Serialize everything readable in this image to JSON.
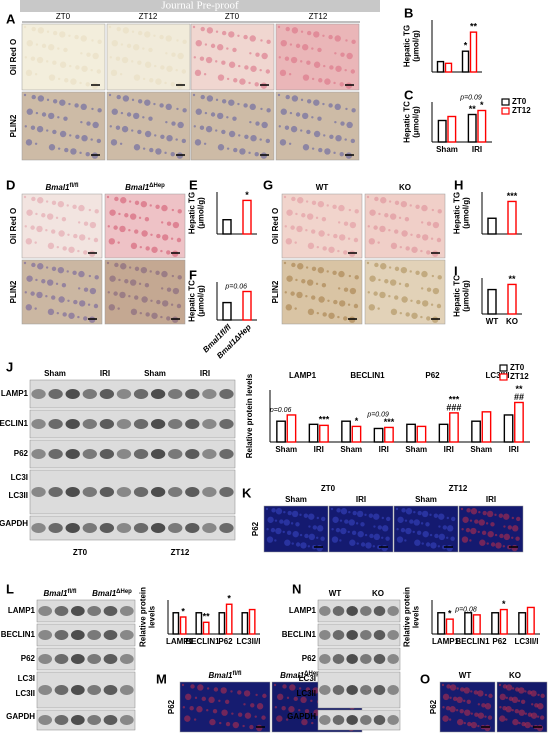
{
  "header": {
    "banner": "Journal Pre-proof"
  },
  "panels": {
    "A": {
      "letter": "A",
      "cols": [
        "ZT0",
        "ZT12",
        "ZT0",
        "ZT12"
      ],
      "rows": [
        "Oil Red O",
        "PLIN2"
      ]
    },
    "D": {
      "letter": "D",
      "cols": [
        {
          "gene": "Bmal1",
          "sup": "fl/fl"
        },
        {
          "gene": "Bmal1",
          "sup": "ΔHep"
        }
      ],
      "rows": [
        "Oil Red O",
        "PLIN2"
      ]
    },
    "G": {
      "letter": "G",
      "cols": [
        "WT",
        "KO"
      ],
      "rows": [
        "Oil Red O",
        "PLIN2"
      ]
    },
    "J": {
      "letter": "J",
      "groups": [
        "Sham",
        "IRI",
        "Sham",
        "IRI"
      ],
      "times": [
        "ZT0",
        "ZT12"
      ],
      "rows": [
        "LAMP1",
        "BECLIN1",
        "P62",
        "LC3I",
        "LC3II",
        "GAPDH"
      ]
    },
    "K": {
      "letter": "K",
      "times": [
        "ZT0",
        "ZT12"
      ],
      "groups": [
        "Sham",
        "IRI",
        "Sham",
        "IRI"
      ],
      "rows": [
        "P62"
      ]
    },
    "L": {
      "letter": "L",
      "cols": [
        {
          "gene": "Bmal1",
          "sup": "fl/fl"
        },
        {
          "gene": "Bmal1",
          "sup": "ΔHep"
        }
      ],
      "rows": [
        "LAMP1",
        "BECLIN1",
        "P62",
        "LC3I",
        "LC3II",
        "GAPDH"
      ]
    },
    "M": {
      "letter": "M",
      "cols": [
        {
          "gene": "Bmal1",
          "sup": "fl/fl"
        },
        {
          "gene": "Bmal1",
          "sup": "ΔHep"
        }
      ],
      "rows": [
        "P62"
      ]
    },
    "N": {
      "letter": "N",
      "cols": [
        "WT",
        "KO"
      ],
      "rows": [
        "LAMP1",
        "BECLIN1",
        "P62",
        "LC3I",
        "LC3II",
        "GAPDH"
      ]
    },
    "O": {
      "letter": "O",
      "cols": [
        "WT",
        "KO"
      ],
      "rows": [
        "P62"
      ]
    }
  },
  "chart_data": [
    {
      "type": "bar",
      "panel": "B",
      "ylabel": [
        "Hepatic TG",
        "(μmol/g)"
      ],
      "categories": [
        null,
        null
      ],
      "series": [
        {
          "color": "#000000",
          "values": [
            6,
            12
          ]
        },
        {
          "color": "#ff0000",
          "values": [
            5,
            23
          ]
        }
      ],
      "ylim": [
        0,
        30
      ],
      "annotations": [
        "*",
        "**"
      ]
    },
    {
      "type": "bar",
      "panel": "C",
      "ylabel": [
        "Hepatic TC",
        "(μmol/g)"
      ],
      "categories": [
        "Sham",
        "IRI"
      ],
      "series": [
        {
          "name": "ZT0",
          "color": "#000000",
          "values": [
            4.3,
            5.5
          ]
        },
        {
          "name": "ZT12",
          "color": "#ff0000",
          "values": [
            5.1,
            6.3
          ]
        }
      ],
      "ylim": [
        0,
        8
      ],
      "annotations": [
        "**",
        "*",
        "p=0.09"
      ]
    },
    {
      "type": "bar",
      "panel": "E",
      "ylabel": [
        "Hepatic TG",
        "(μmol/g)"
      ],
      "categories": [
        null,
        null
      ],
      "values": [
        17,
        40
      ],
      "colors": [
        "#000000",
        "#ff0000"
      ],
      "ylim": [
        0,
        50
      ],
      "annotations": [
        "*"
      ]
    },
    {
      "type": "bar",
      "panel": "F",
      "ylabel": [
        "Hepatic TC",
        "(μmol/g)"
      ],
      "categories": [
        "Bmal1fl/fl",
        "Bmal1ΔHep"
      ],
      "values": [
        5.5,
        9
      ],
      "colors": [
        "#000000",
        "#ff0000"
      ],
      "ylim": [
        0,
        12
      ],
      "annotations": [
        "p=0.06"
      ]
    },
    {
      "type": "bar",
      "panel": "H",
      "ylabel": [
        "Hepatic TG",
        "(μmol/g)"
      ],
      "categories": [
        null,
        null
      ],
      "values": [
        15,
        31
      ],
      "colors": [
        "#000000",
        "#ff0000"
      ],
      "ylim": [
        0,
        40
      ],
      "annotations": [
        "***"
      ]
    },
    {
      "type": "bar",
      "panel": "I",
      "ylabel": [
        "Hepatic TC",
        "(μmol/g)"
      ],
      "categories": [
        "WT",
        "KO"
      ],
      "values": [
        9.5,
        11.5
      ],
      "colors": [
        "#000000",
        "#ff0000"
      ],
      "ylim": [
        0,
        14
      ],
      "annotations": [
        "**"
      ]
    },
    {
      "type": "bar",
      "ylabel": [
        "Relative protein levels"
      ],
      "groups": [
        "LAMP1",
        "BECLIN1",
        "P62",
        "LC3II/I"
      ],
      "categories": [
        "Sham",
        "IRI",
        "Sham",
        "IRI",
        "Sham",
        "IRI",
        "Sham",
        "IRI"
      ],
      "series": [
        {
          "name": "ZT0",
          "color": "#000000",
          "values": [
            1.0,
            0.85,
            1.0,
            0.65,
            0.85,
            0.85,
            1.0,
            1.3
          ]
        },
        {
          "name": "ZT12",
          "color": "#ff0000",
          "values": [
            1.3,
            0.8,
            0.75,
            0.7,
            0.75,
            1.4,
            1.45,
            1.9
          ]
        }
      ],
      "ylim": [
        0,
        2.5
      ],
      "annotations": [
        "p=0.06",
        "***",
        "*",
        "***",
        "p=0.09",
        "###",
        "***",
        "##",
        "**"
      ]
    },
    {
      "type": "bar",
      "ylabel": [
        "Relative protein",
        "levels"
      ],
      "categories": [
        "LAMP1",
        "BECLIN1",
        "P62",
        "LC3II/I"
      ],
      "series": [
        {
          "color": "#000000",
          "values": [
            1.0,
            1.0,
            1.0,
            1.0
          ]
        },
        {
          "color": "#ff0000",
          "values": [
            0.8,
            0.55,
            1.4,
            1.15
          ]
        }
      ],
      "ylim": [
        0,
        1.6
      ],
      "annotations": [
        "*",
        "**",
        "*"
      ]
    },
    {
      "type": "bar",
      "ylabel": [
        "Relative protein",
        "levels"
      ],
      "categories": [
        "LAMP1",
        "BECLIN1",
        "P62",
        "LC3II/I"
      ],
      "series": [
        {
          "color": "#000000",
          "values": [
            1.0,
            1.0,
            1.0,
            1.0
          ]
        },
        {
          "color": "#ff0000",
          "values": [
            0.7,
            0.9,
            1.15,
            1.25
          ]
        }
      ],
      "ylim": [
        0,
        1.6
      ],
      "annotations": [
        "*",
        "p=0.08",
        "*"
      ]
    }
  ]
}
